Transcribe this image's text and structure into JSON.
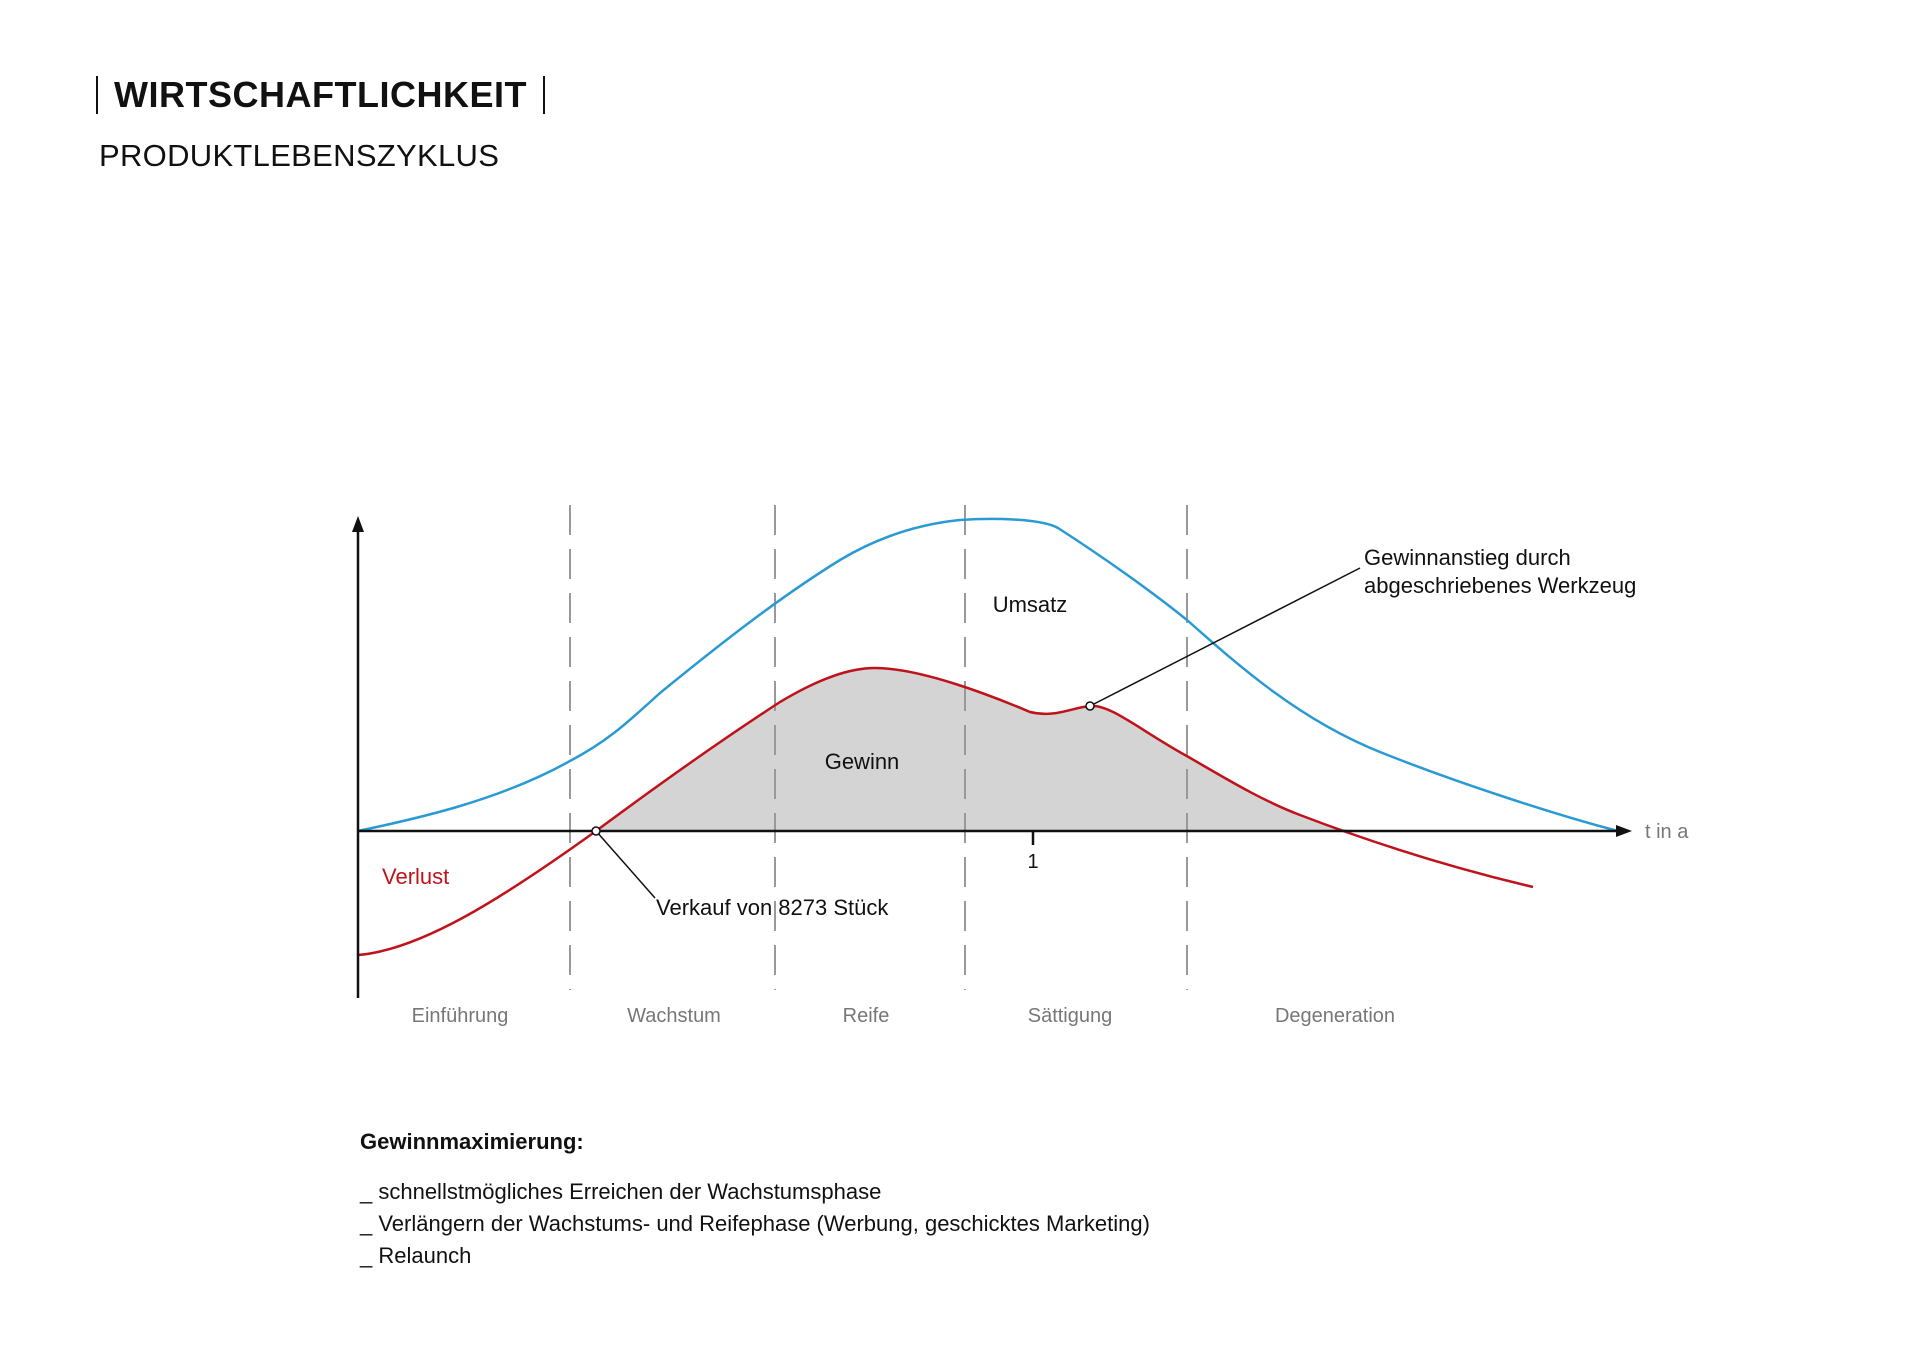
{
  "header": {
    "title": "WIRTSCHAFTLICHKEIT",
    "subtitle": "PRODUKTLEBENSZYKLUS"
  },
  "diagram": {
    "x_axis_label": "t in a",
    "x_tick_label": "1",
    "curves": {
      "revenue_label": "Umsatz",
      "profit_label": "Gewinn",
      "loss_label": "Verlust"
    },
    "annotations": {
      "break_even": "Verkauf von 8273 Stück",
      "profit_rise_line1": "Gewinnanstieg durch",
      "profit_rise_line2": "abgeschriebenes Werkzeug"
    },
    "phases": [
      "Einführung",
      "Wachstum",
      "Reife",
      "Sättigung",
      "Degeneration"
    ],
    "colors": {
      "revenue": "#2a9ad4",
      "profit": "#c0121b",
      "profit_fill": "#d4d4d4",
      "phase_label": "#777777",
      "axis": "#111111",
      "divider": "#999999"
    }
  },
  "notes": {
    "heading": "Gewinnmaximierung:",
    "items": [
      "_ schnellstmögliches Erreichen der Wachstumsphase",
      "_ Verlängern der Wachstums- und Reifephase (Werbung, geschicktes Marketing)",
      "_ Relaunch"
    ]
  }
}
